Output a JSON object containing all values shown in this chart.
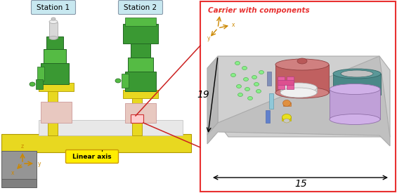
{
  "station1_label": "Station 1",
  "station2_label": "Station 2",
  "carrier_label": "Carrier with components",
  "linear_axis_label": "Linear axis",
  "dim_19": "19",
  "dim_15": "15",
  "bg_color": "#ffffff",
  "right_panel_border": "#e83030",
  "carrier_title_color": "#e83030",
  "axis_color": "#cc8800",
  "linear_axis_bg": "#ffee00",
  "linear_axis_border": "#cc9900",
  "station_box_bg": "#c8e8f0",
  "station_box_border": "#8899aa",
  "carrier_bg": "#c8c8c8",
  "carrier_edge": "#aaaaaa",
  "green_dark": "#3a9933",
  "green_mid": "#55bb44",
  "green_light": "#88dd66",
  "yellow_mech": "#e8d820",
  "yellow_edge": "#b09900",
  "gray_base": "#909090",
  "gray_base_edge": "#606060",
  "pink_tray": "#e8c8c0",
  "white_cyl": "#dddddd",
  "red_cyl_top": "#d08080",
  "red_cyl_side": "#c06060",
  "red_cyl_edge": "#904040",
  "teal_top": "#5a9898",
  "teal_side": "#4a8888",
  "teal_edge": "#336666",
  "purple_top": "#d0b0e8",
  "purple_side": "#c0a0d8",
  "purple_edge": "#9070a8",
  "pink_piece": "#e860a0",
  "pink_piece_edge": "#b04080",
  "green_dot": "#88ee88",
  "green_dot_edge": "#44aa44",
  "blue_bar1": "#6688bb",
  "blue_bar2": "#88bbdd",
  "orange_piece": "#e09040",
  "yellow_piece": "#e8e020",
  "hole_color": "#e0e0e0",
  "carrier_shadow": "#b8b8b8",
  "red_line": "#cc2222"
}
